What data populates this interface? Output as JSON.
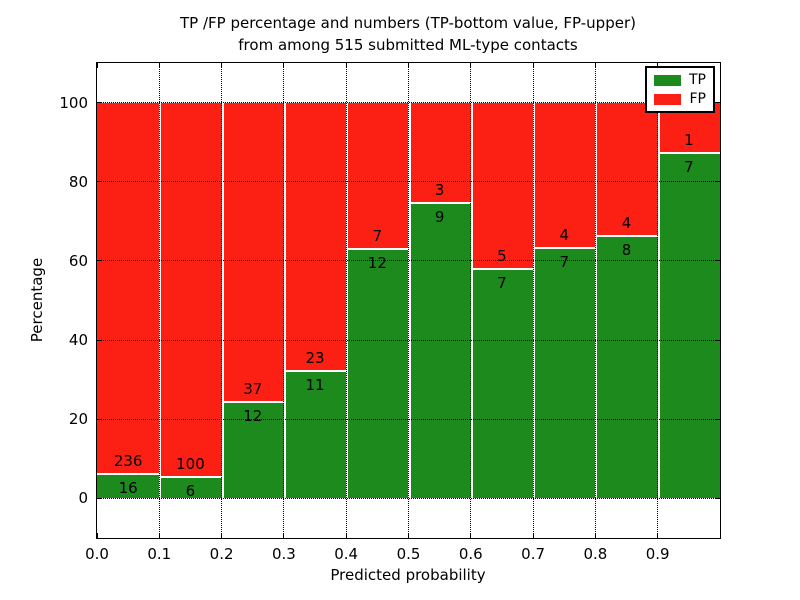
{
  "figure": {
    "background": "#ffffff",
    "title_line1": "TP /FP percentage and numbers (TP-bottom value, FP-upper)",
    "title_line2": "from among 515 submitted ML-type contacts"
  },
  "chart_data": {
    "type": "bar",
    "stacked": true,
    "bars_normalized_to_percent_per_bin": true,
    "title": "TP /FP percentage and numbers (TP-bottom value, FP-upper)\nfrom among 515 submitted ML-type contacts",
    "xlabel": "Predicted probability",
    "ylabel": "Percentage",
    "total_contacts": 515,
    "bin_edges": [
      0.0,
      0.1,
      0.2,
      0.3,
      0.4,
      0.5,
      0.6,
      0.7,
      0.8,
      0.9,
      1.0
    ],
    "categories": [
      "0.0-0.1",
      "0.1-0.2",
      "0.2-0.3",
      "0.3-0.4",
      "0.4-0.5",
      "0.5-0.6",
      "0.6-0.7",
      "0.7-0.8",
      "0.8-0.9",
      "0.9-1.0"
    ],
    "series": [
      {
        "name": "TP",
        "color": "#1c8a1c",
        "counts": [
          16,
          6,
          12,
          11,
          12,
          9,
          7,
          7,
          8,
          7
        ]
      },
      {
        "name": "FP",
        "color": "#fb1f14",
        "counts": [
          236,
          100,
          37,
          23,
          7,
          3,
          5,
          4,
          4,
          1
        ]
      }
    ],
    "tp_percent_of_bin": [
      6.3,
      5.7,
      24.5,
      32.4,
      63.2,
      75.0,
      58.3,
      63.6,
      66.7,
      87.5
    ],
    "xlim": [
      0.0,
      1.0
    ],
    "ylim": [
      -10,
      110
    ],
    "xticks": [
      "0.0",
      "0.1",
      "0.2",
      "0.3",
      "0.4",
      "0.5",
      "0.6",
      "0.7",
      "0.8",
      "0.9"
    ],
    "yticks": [
      0,
      20,
      40,
      60,
      80,
      100
    ],
    "grid": true,
    "grid_style": "dotted",
    "bar_edge_color": "#ffffff",
    "legend": {
      "position": "upper right",
      "entries": [
        {
          "label": "TP",
          "color": "#1c8a1c"
        },
        {
          "label": "FP",
          "color": "#fb1f14"
        }
      ]
    }
  }
}
